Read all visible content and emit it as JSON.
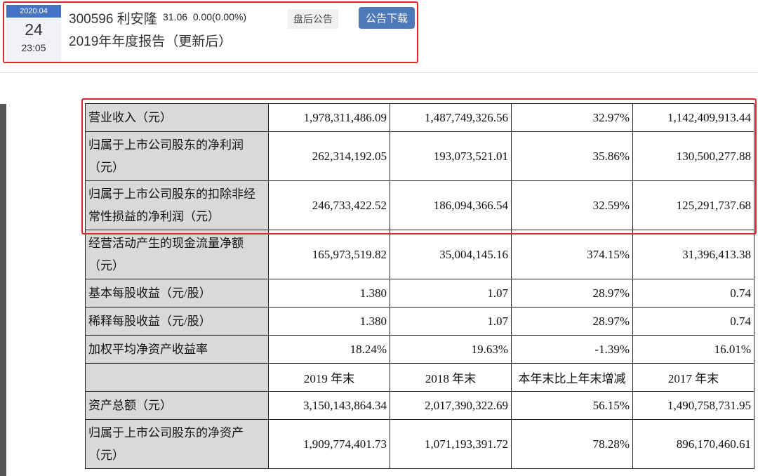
{
  "header": {
    "month": "2020.04",
    "day": "24",
    "time": "23:05",
    "code": "300596",
    "name": "利安隆",
    "price": "31.06",
    "change": "0.00(0.00%)",
    "tag": "盘后公告",
    "download": "公告下载",
    "title": "2019年年度报告（更新后）"
  },
  "table": {
    "rows1": [
      {
        "label": "营业收入（元）",
        "values": [
          "1,978,311,486.09",
          "1,487,749,326.56",
          "32.97%",
          "1,142,409,913.44"
        ]
      },
      {
        "label": "归属于上市公司股东的净利润（元）",
        "values": [
          "262,314,192.05",
          "193,073,521.01",
          "35.86%",
          "130,500,277.88"
        ]
      },
      {
        "label": "归属于上市公司股东的扣除非经常性损益的净利润（元）",
        "values": [
          "246,733,422.52",
          "186,094,366.54",
          "32.59%",
          "125,291,737.68"
        ]
      },
      {
        "label": "经营活动产生的现金流量净额（元）",
        "values": [
          "165,973,519.82",
          "35,004,145.16",
          "374.15%",
          "31,396,413.38"
        ]
      },
      {
        "label": "基本每股收益（元/股）",
        "values": [
          "1.380",
          "1.07",
          "28.97%",
          "0.74"
        ]
      },
      {
        "label": "稀释每股收益（元/股）",
        "values": [
          "1.380",
          "1.07",
          "28.97%",
          "0.74"
        ]
      },
      {
        "label": "加权平均净资产收益率",
        "values": [
          "18.24%",
          "19.63%",
          "-1.39%",
          "16.01%"
        ]
      }
    ],
    "header2": [
      "",
      "2019 年末",
      "2018 年末",
      "本年末比上年末增减",
      "2017 年末"
    ],
    "rows2": [
      {
        "label": "资产总额（元）",
        "values": [
          "3,150,143,864.34",
          "2,017,390,322.69",
          "56.15%",
          "1,490,758,731.95"
        ]
      },
      {
        "label": "归属于上市公司股东的净资产（元）",
        "values": [
          "1,909,774,401.73",
          "1,071,193,391.72",
          "78.28%",
          "896,170,460.61"
        ]
      }
    ]
  },
  "colors": {
    "highlight": "#e0262b",
    "accent": "#4f79b9"
  }
}
